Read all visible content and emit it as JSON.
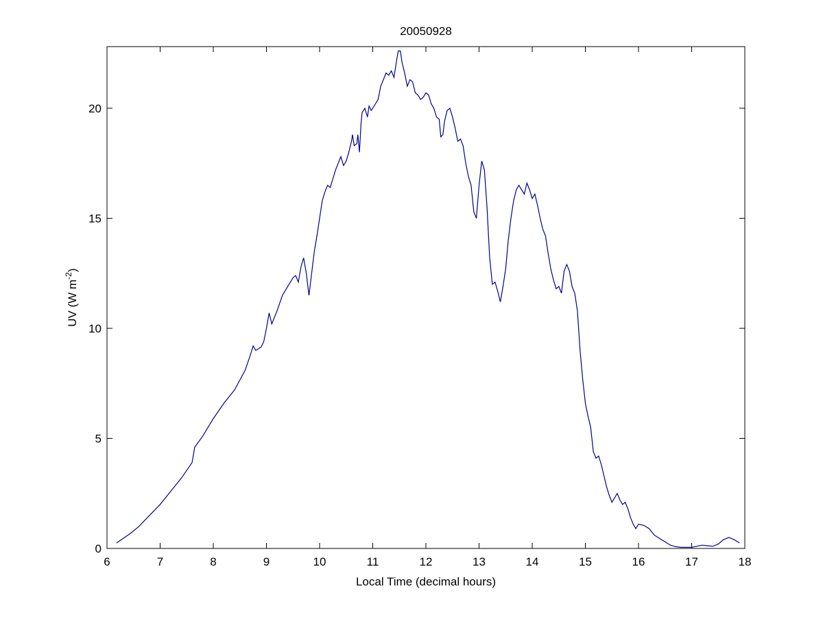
{
  "chart_data": {
    "type": "line",
    "title": "20050928",
    "xlabel": "Local Time (decimal hours)",
    "ylabel": "UV (W m",
    "ylabel_sup": "-2",
    "ylabel_close": ")",
    "xlim": [
      6,
      18
    ],
    "ylim": [
      0,
      22.8
    ],
    "xticks": [
      6,
      7,
      8,
      9,
      10,
      11,
      12,
      13,
      14,
      15,
      16,
      17,
      18
    ],
    "yticks": [
      0,
      5,
      10,
      15,
      20
    ],
    "grid": false,
    "line_color": "#00008b",
    "series": [
      {
        "x": [
          6.18,
          6.3,
          6.45,
          6.6,
          6.8,
          7.0,
          7.2,
          7.4,
          7.6,
          7.63,
          7.65,
          7.8,
          8.0,
          8.2,
          8.4,
          8.6,
          8.7,
          8.75,
          8.8,
          8.9,
          8.95,
          9.0,
          9.05,
          9.1,
          9.2,
          9.3,
          9.4,
          9.5,
          9.55,
          9.6,
          9.65,
          9.7,
          9.75,
          9.8,
          9.9,
          9.95,
          10.0,
          10.05,
          10.1,
          10.15,
          10.2,
          10.3,
          10.4,
          10.45,
          10.5,
          10.55,
          10.6,
          10.62,
          10.65,
          10.7,
          10.72,
          10.75,
          10.78,
          10.8,
          10.85,
          10.9,
          10.93,
          10.97,
          11.0,
          11.05,
          11.1,
          11.15,
          11.2,
          11.25,
          11.3,
          11.35,
          11.4,
          11.45,
          11.48,
          11.52,
          11.55,
          11.6,
          11.65,
          11.7,
          11.75,
          11.8,
          11.85,
          11.9,
          11.95,
          12.0,
          12.05,
          12.1,
          12.15,
          12.2,
          12.25,
          12.28,
          12.32,
          12.35,
          12.4,
          12.45,
          12.5,
          12.55,
          12.6,
          12.65,
          12.7,
          12.75,
          12.8,
          12.85,
          12.9,
          12.95,
          13.0,
          13.05,
          13.1,
          13.15,
          13.2,
          13.25,
          13.3,
          13.35,
          13.4,
          13.45,
          13.5,
          13.55,
          13.6,
          13.65,
          13.7,
          13.75,
          13.8,
          13.85,
          13.9,
          13.95,
          14.0,
          14.05,
          14.1,
          14.15,
          14.2,
          14.25,
          14.3,
          14.35,
          14.4,
          14.45,
          14.5,
          14.55,
          14.6,
          14.65,
          14.7,
          14.75,
          14.8,
          14.85,
          14.9,
          14.95,
          15.0,
          15.05,
          15.1,
          15.15,
          15.2,
          15.25,
          15.3,
          15.35,
          15.4,
          15.45,
          15.5,
          15.55,
          15.6,
          15.65,
          15.7,
          15.75,
          15.8,
          15.85,
          15.9,
          15.95,
          16.0,
          16.1,
          16.2,
          16.3,
          16.4,
          16.5,
          16.6,
          16.7,
          16.8,
          16.9,
          17.0,
          17.1,
          17.2,
          17.3,
          17.4,
          17.5,
          17.6,
          17.7,
          17.8,
          17.9
        ],
        "y": [
          0.25,
          0.45,
          0.7,
          1.0,
          1.5,
          2.0,
          2.6,
          3.2,
          3.9,
          4.3,
          4.6,
          5.1,
          5.9,
          6.6,
          7.2,
          8.1,
          8.8,
          9.2,
          9.0,
          9.15,
          9.4,
          10.0,
          10.7,
          10.2,
          10.8,
          11.5,
          11.9,
          12.3,
          12.4,
          12.1,
          12.8,
          13.2,
          12.5,
          11.5,
          13.5,
          14.2,
          15.0,
          15.8,
          16.2,
          16.5,
          16.4,
          17.2,
          17.8,
          17.4,
          17.6,
          18.0,
          18.5,
          18.8,
          18.3,
          18.4,
          18.8,
          18.0,
          19.3,
          19.8,
          20.0,
          19.6,
          20.1,
          19.9,
          20.0,
          20.2,
          20.4,
          21.0,
          21.3,
          21.6,
          21.5,
          21.7,
          21.4,
          22.2,
          22.6,
          22.6,
          22.1,
          21.6,
          21.0,
          21.3,
          21.2,
          20.7,
          20.6,
          20.4,
          20.5,
          20.7,
          20.6,
          20.2,
          20.0,
          19.6,
          19.5,
          18.7,
          18.8,
          19.4,
          19.9,
          20.0,
          19.6,
          19.1,
          18.5,
          18.6,
          18.3,
          17.5,
          16.9,
          16.5,
          15.3,
          15.0,
          16.5,
          17.6,
          17.2,
          15.5,
          13.2,
          12.0,
          12.1,
          11.7,
          11.2,
          11.9,
          12.7,
          14.0,
          15.0,
          15.8,
          16.3,
          16.5,
          16.3,
          16.1,
          16.6,
          16.3,
          15.9,
          16.1,
          15.6,
          15.0,
          14.5,
          14.2,
          13.4,
          12.7,
          12.2,
          11.8,
          11.9,
          11.6,
          12.6,
          12.9,
          12.6,
          11.9,
          11.6,
          10.8,
          9.0,
          7.7,
          6.6,
          6.0,
          5.5,
          4.4,
          4.1,
          4.2,
          3.8,
          3.3,
          2.8,
          2.4,
          2.1,
          2.3,
          2.5,
          2.2,
          2.0,
          2.1,
          1.8,
          1.4,
          1.1,
          0.9,
          1.1,
          1.05,
          0.9,
          0.6,
          0.45,
          0.3,
          0.15,
          0.08,
          0.05,
          0.05,
          0.05,
          0.1,
          0.15,
          0.12,
          0.1,
          0.2,
          0.4,
          0.5,
          0.4,
          0.25
        ]
      }
    ]
  }
}
